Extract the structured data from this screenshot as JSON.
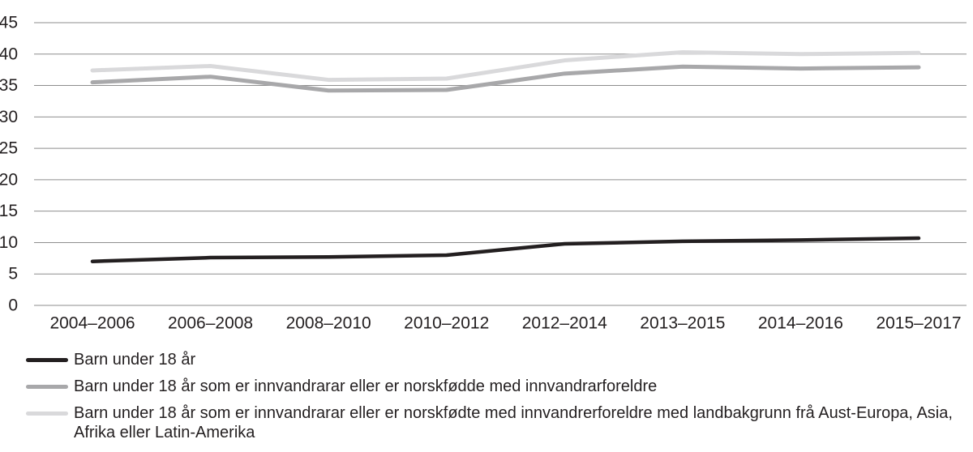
{
  "chart_data": {
    "type": "line",
    "title": "",
    "xlabel": "",
    "ylabel": "",
    "categories": [
      "2004–2006",
      "2006–2008",
      "2008–2010",
      "2010–2012",
      "2012–2014",
      "2013–2015",
      "2014–2016",
      "2015–2017"
    ],
    "series": [
      {
        "name": "Barn under 18 år",
        "color": "#231f20",
        "stroke_width": 4.5,
        "values": [
          7.0,
          7.6,
          7.7,
          8.0,
          9.8,
          10.2,
          10.4,
          10.7
        ]
      },
      {
        "name": "Barn under 18 år som er innvandrarar eller er norskfødde med innvandrarforeldre",
        "color": "#a8a8aa",
        "stroke_width": 5,
        "values": [
          35.5,
          36.4,
          34.2,
          34.3,
          36.9,
          38.0,
          37.7,
          37.9
        ]
      },
      {
        "name": "Barn under 18 år som er innvandrarar eller er norskfødte med innvandrerforeldre med landbakgrunn frå Aust-Europa, Asia, Afrika eller Latin-Amerika",
        "color": "#d9d9db",
        "stroke_width": 5,
        "values": [
          37.4,
          38.1,
          35.9,
          36.1,
          39.0,
          40.3,
          40.0,
          40.2
        ]
      }
    ],
    "ylim": [
      0,
      45
    ],
    "yticks": [
      45,
      40,
      35,
      30,
      25,
      20,
      15,
      10,
      5,
      0
    ],
    "grid": "horizontal",
    "gridline_color": "#8e8e8e",
    "tick_label_color": "#231f20",
    "legend_position": "bottom"
  }
}
